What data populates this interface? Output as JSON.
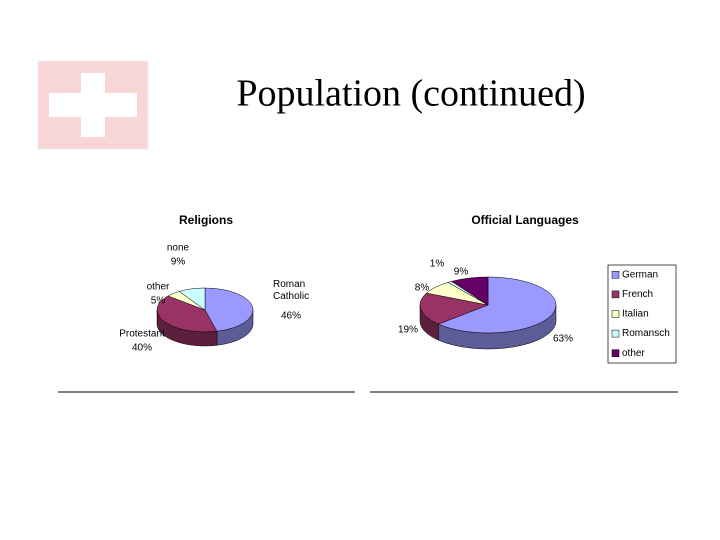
{
  "slide_title": "Population (continued)",
  "chart_data": [
    {
      "type": "pie",
      "title": "Religions",
      "categories": [
        "Roman Catholic",
        "Protestant",
        "other",
        "none"
      ],
      "values": [
        46,
        40,
        5,
        9
      ],
      "value_labels": [
        "46%",
        "40%",
        "5%",
        "9%"
      ],
      "colors": [
        "#9999ff",
        "#993366",
        "#ffffcc",
        "#ccffff"
      ],
      "legend": false
    },
    {
      "type": "pie",
      "title": "Official Languages",
      "categories": [
        "German",
        "French",
        "Italian",
        "Romansch",
        "other"
      ],
      "values": [
        63,
        19,
        8,
        1,
        9
      ],
      "value_labels": [
        "63%",
        "19%",
        "8%",
        "1%",
        "9%"
      ],
      "colors": [
        "#9999ff",
        "#993366",
        "#ffffcc",
        "#ccffff",
        "#660066"
      ],
      "legend": true
    }
  ]
}
